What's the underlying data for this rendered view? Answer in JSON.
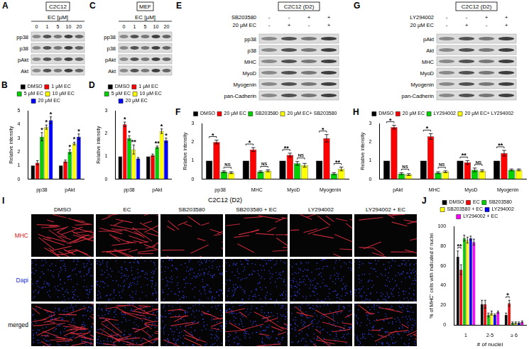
{
  "blots": [
    {
      "panel": "A",
      "cell_line": "C2C12",
      "treatment_label": "EC [µM]",
      "lanes": [
        "0",
        "1",
        "5",
        "10",
        "20"
      ],
      "rows": [
        "pp38",
        "p38",
        "pAkt",
        "Akt"
      ]
    },
    {
      "panel": "C",
      "cell_line": "MEF",
      "treatment_label": "EC [µM]",
      "lanes": [
        "0",
        "1",
        "5",
        "10",
        "20"
      ],
      "rows": [
        "pp38",
        "p38",
        "pAkt",
        "Akt"
      ]
    },
    {
      "panel": "E",
      "cell_line": "C2C12 (D2)",
      "conditions": [
        {
          "label": "SB203580",
          "lanes": [
            "-",
            "-",
            "+",
            "+"
          ]
        },
        {
          "label": "20 µM EC",
          "lanes": [
            "-",
            "+",
            "-",
            "+"
          ]
        }
      ],
      "rows": [
        "pp38",
        "p38",
        "MHC",
        "MyoD",
        "Myogenin",
        "pan-Cadherin"
      ]
    },
    {
      "panel": "G",
      "cell_line": "C2C12 (D2)",
      "conditions": [
        {
          "label": "LY294002",
          "lanes": [
            "-",
            "-",
            "+",
            "+"
          ]
        },
        {
          "label": "20 µM EC",
          "lanes": [
            "-",
            "+",
            "-",
            "+"
          ]
        }
      ],
      "rows": [
        "pAkt",
        "Akt",
        "MHC",
        "MyoD",
        "Myogenin",
        "pan-Cadherin"
      ]
    }
  ],
  "micrograph": {
    "panel": "I",
    "title": "C2C12 (D2)",
    "columns": [
      "DMSO",
      "EC",
      "SB203580",
      "SB203580 + EC",
      "LY294002",
      "LY294002 + EC"
    ],
    "rows": [
      "MHC",
      "Dapi",
      "merged"
    ]
  },
  "chart_data": [
    {
      "panel": "B",
      "type": "bar",
      "y_label": "Relative intensity",
      "categories": [
        "pp38",
        "pAkt"
      ],
      "series": [
        {
          "name": "DMSO",
          "color": "#000000",
          "values": [
            1,
            1
          ],
          "errors": [
            0,
            0
          ]
        },
        {
          "name": "1 µM EC",
          "color": "#ff0000",
          "values": [
            1.2,
            1.3
          ],
          "errors": [
            0.15,
            0.1
          ]
        },
        {
          "name": "5 µM EC",
          "color": "#00d000",
          "values": [
            3.1,
            2.0
          ],
          "errors": [
            0.3,
            0.15
          ]
        },
        {
          "name": "10 µM EC",
          "color": "#ffff00",
          "values": [
            3.8,
            2.6
          ],
          "errors": [
            0.15,
            0.1
          ]
        },
        {
          "name": "20 µM EC",
          "color": "#0000ff",
          "values": [
            4.3,
            3.1
          ],
          "errors": [
            0.25,
            0.2
          ]
        }
      ],
      "ylim": [
        0,
        5
      ],
      "yticks": [
        0,
        1,
        2,
        3,
        4,
        5
      ],
      "grid": false,
      "legend": "top",
      "annotations": [
        {
          "category": 0,
          "series": [
            2
          ],
          "text": "*"
        },
        {
          "category": 0,
          "series": [
            3
          ],
          "text": "*"
        },
        {
          "category": 0,
          "series": [
            4
          ],
          "text": "*"
        },
        {
          "category": 1,
          "series": [
            2
          ],
          "text": "*"
        },
        {
          "category": 1,
          "series": [
            3
          ],
          "text": "*"
        },
        {
          "category": 1,
          "series": [
            4
          ],
          "text": "*"
        }
      ]
    },
    {
      "panel": "D",
      "type": "bar",
      "y_label": "Relative intensity",
      "categories": [
        "pp38",
        "pAkt"
      ],
      "series": [
        {
          "name": "DMSO",
          "color": "#000000",
          "values": [
            1,
            1
          ],
          "errors": [
            0,
            0
          ]
        },
        {
          "name": "1 µM EC",
          "color": "#ff0000",
          "values": [
            2.4,
            1.05
          ],
          "errors": [
            0.1,
            0.05
          ]
        },
        {
          "name": "5 µM EC",
          "color": "#00d000",
          "values": [
            1.8,
            1.4
          ],
          "errors": [
            0.1,
            0.05
          ]
        },
        {
          "name": "10 µM EC",
          "color": "#ffff00",
          "values": [
            1.3,
            2.1
          ],
          "errors": [
            0.2,
            0.1
          ]
        },
        {
          "name": "20 µM EC",
          "color": "#0000ff",
          "values": [
            0.9,
            1.7
          ],
          "errors": [
            0.05,
            0.1
          ]
        }
      ],
      "ylim": [
        0,
        3
      ],
      "yticks": [
        0,
        1,
        2,
        3
      ],
      "grid": false,
      "legend": "top",
      "annotations": [
        {
          "category": 0,
          "series": [
            1
          ],
          "text": "*"
        },
        {
          "category": 0,
          "series": [
            2
          ],
          "text": "*"
        },
        {
          "category": 0,
          "series": [
            3
          ],
          "text": "**"
        },
        {
          "category": 1,
          "series": [
            2
          ],
          "text": "**"
        },
        {
          "category": 1,
          "series": [
            3
          ],
          "text": "*"
        },
        {
          "category": 1,
          "series": [
            4
          ],
          "text": "*"
        }
      ]
    },
    {
      "panel": "F",
      "type": "bar",
      "y_label": "Relative intensity",
      "categories": [
        "pp38",
        "MHC",
        "MyoD",
        "Myogenin"
      ],
      "series": [
        {
          "name": "DMSO",
          "color": "#000000",
          "values": [
            1,
            1,
            1,
            1
          ],
          "errors": [
            0,
            0,
            0,
            0
          ]
        },
        {
          "name": "20 µM EC",
          "color": "#ff0000",
          "values": [
            2.0,
            1.6,
            1.3,
            2.2
          ],
          "errors": [
            0.1,
            0.1,
            0.1,
            0.2
          ]
        },
        {
          "name": "SB203580",
          "color": "#00d000",
          "values": [
            0.4,
            0.4,
            0.85,
            0.3
          ],
          "errors": [
            0.05,
            0.05,
            0.1,
            0.05
          ]
        },
        {
          "name": "20 µM EC+ SB203580",
          "color": "#ffff00",
          "values": [
            0.35,
            0.45,
            0.75,
            0.55
          ],
          "errors": [
            0.05,
            0.05,
            0.1,
            0.1
          ]
        }
      ],
      "ylim": [
        0,
        3
      ],
      "yticks": [
        0,
        1,
        2,
        3
      ],
      "grid": false,
      "legend": "top",
      "annotations": [
        {
          "category": 0,
          "series": [
            0,
            1
          ],
          "text": "*"
        },
        {
          "category": 0,
          "series": [
            2,
            3
          ],
          "text": "NS"
        },
        {
          "category": 1,
          "series": [
            0,
            1
          ],
          "text": "*"
        },
        {
          "category": 1,
          "series": [
            2,
            3
          ],
          "text": "NS"
        },
        {
          "category": 2,
          "series": [
            0,
            1
          ],
          "text": "**"
        },
        {
          "category": 2,
          "series": [
            2,
            3
          ],
          "text": "NS"
        },
        {
          "category": 3,
          "series": [
            0,
            1
          ],
          "text": "*"
        },
        {
          "category": 3,
          "series": [
            2,
            3
          ],
          "text": "**"
        }
      ]
    },
    {
      "panel": "H",
      "type": "bar",
      "y_label": "Relative intensity",
      "categories": [
        "pAkt",
        "MHC",
        "MyoD",
        "Myogenin"
      ],
      "series": [
        {
          "name": "DMSO",
          "color": "#000000",
          "values": [
            1,
            1,
            1,
            1
          ],
          "errors": [
            0,
            0,
            0,
            0
          ]
        },
        {
          "name": "20 µM EC",
          "color": "#ff0000",
          "values": [
            2.8,
            2.3,
            0.9,
            1.4
          ],
          "errors": [
            0.1,
            0.15,
            0.1,
            0.15
          ]
        },
        {
          "name": "LY294002",
          "color": "#00d000",
          "values": [
            0.3,
            0.35,
            0.5,
            0.5
          ],
          "errors": [
            0.05,
            0.05,
            0.1,
            0.05
          ]
        },
        {
          "name": "20 µM EC+ LY294002",
          "color": "#ffff00",
          "values": [
            0.25,
            0.4,
            0.45,
            0.5
          ],
          "errors": [
            0.05,
            0.05,
            0.05,
            0.05
          ]
        }
      ],
      "ylim": [
        0,
        3
      ],
      "yticks": [
        0,
        1,
        2,
        3
      ],
      "grid": false,
      "legend": "top",
      "annotations": [
        {
          "category": 0,
          "series": [
            0,
            1
          ],
          "text": "*"
        },
        {
          "category": 0,
          "series": [
            2,
            3
          ],
          "text": "NS"
        },
        {
          "category": 1,
          "series": [
            0,
            1
          ],
          "text": "*"
        },
        {
          "category": 1,
          "series": [
            2,
            3
          ],
          "text": "NS"
        },
        {
          "category": 2,
          "series": [
            0,
            1
          ],
          "text": "**"
        },
        {
          "category": 2,
          "series": [
            2,
            3
          ],
          "text": "NS"
        },
        {
          "category": 3,
          "series": [
            0,
            1
          ],
          "text": "**"
        }
      ]
    },
    {
      "panel": "J",
      "type": "bar",
      "y_label": "% of MHC⁺ cells with indicated # nuclei",
      "x_label": "# of nuclei",
      "categories": [
        "1",
        "2-5",
        "≥ 6"
      ],
      "series": [
        {
          "name": "DMSO",
          "color": "#000000",
          "values": [
            69,
            21,
            10
          ],
          "errors": [
            6,
            4,
            2
          ]
        },
        {
          "name": "EC",
          "color": "#ff0000",
          "values": [
            56,
            21,
            22
          ],
          "errors": [
            5,
            4,
            3
          ]
        },
        {
          "name": "SB203580",
          "color": "#00d000",
          "values": [
            88,
            10,
            2
          ],
          "errors": [
            3,
            2,
            1
          ]
        },
        {
          "name": "SB203580 + EC",
          "color": "#ffff00",
          "values": [
            86,
            12,
            2
          ],
          "errors": [
            3,
            2,
            1
          ]
        },
        {
          "name": "LY294002",
          "color": "#0000ff",
          "values": [
            88,
            10,
            2
          ],
          "errors": [
            2,
            1,
            1
          ]
        },
        {
          "name": "LY294002 + EC",
          "color": "#ff00ff",
          "values": [
            84,
            13,
            3
          ],
          "errors": [
            3,
            1,
            1
          ]
        }
      ],
      "ylim": [
        0,
        100
      ],
      "yticks": [
        0,
        20,
        40,
        60,
        80,
        100
      ],
      "grid": false,
      "legend": "top",
      "annotations": [
        {
          "category": 0,
          "series": [
            0,
            1
          ],
          "text": "**"
        },
        {
          "category": 2,
          "series": [
            0,
            1
          ],
          "text": "*"
        }
      ]
    }
  ]
}
